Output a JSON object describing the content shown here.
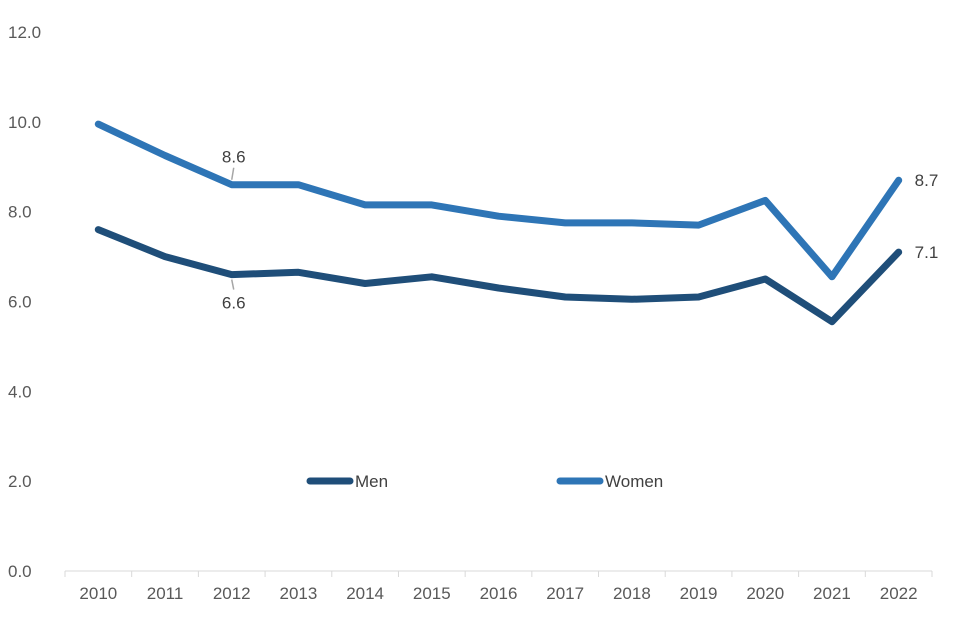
{
  "chart_data": {
    "type": "line",
    "title": "",
    "xlabel": "",
    "ylabel": "",
    "categories": [
      "2010",
      "2011",
      "2012",
      "2013",
      "2014",
      "2015",
      "2016",
      "2017",
      "2018",
      "2019",
      "2020",
      "2021",
      "2022"
    ],
    "ylim": [
      0,
      12
    ],
    "yticks": [
      "0.0",
      "2.0",
      "4.0",
      "6.0",
      "8.0",
      "10.0",
      "12.0"
    ],
    "grid": false,
    "legend_position": "center",
    "series": [
      {
        "name": "Men",
        "color": "#1f4e79",
        "values": [
          7.6,
          7.0,
          6.6,
          6.65,
          6.4,
          6.55,
          6.3,
          6.1,
          6.05,
          6.1,
          6.5,
          5.55,
          7.1
        ],
        "labels": [
          {
            "index": 2,
            "text": "6.6",
            "position": "below"
          },
          {
            "index": 12,
            "text": "7.1",
            "position": "right"
          }
        ]
      },
      {
        "name": "Women",
        "color": "#2e75b6",
        "values": [
          9.95,
          9.25,
          8.6,
          8.6,
          8.15,
          8.15,
          7.9,
          7.75,
          7.75,
          7.7,
          8.25,
          6.55,
          8.7
        ],
        "labels": [
          {
            "index": 2,
            "text": "8.6",
            "position": "above"
          },
          {
            "index": 12,
            "text": "8.7",
            "position": "right"
          }
        ]
      }
    ]
  }
}
